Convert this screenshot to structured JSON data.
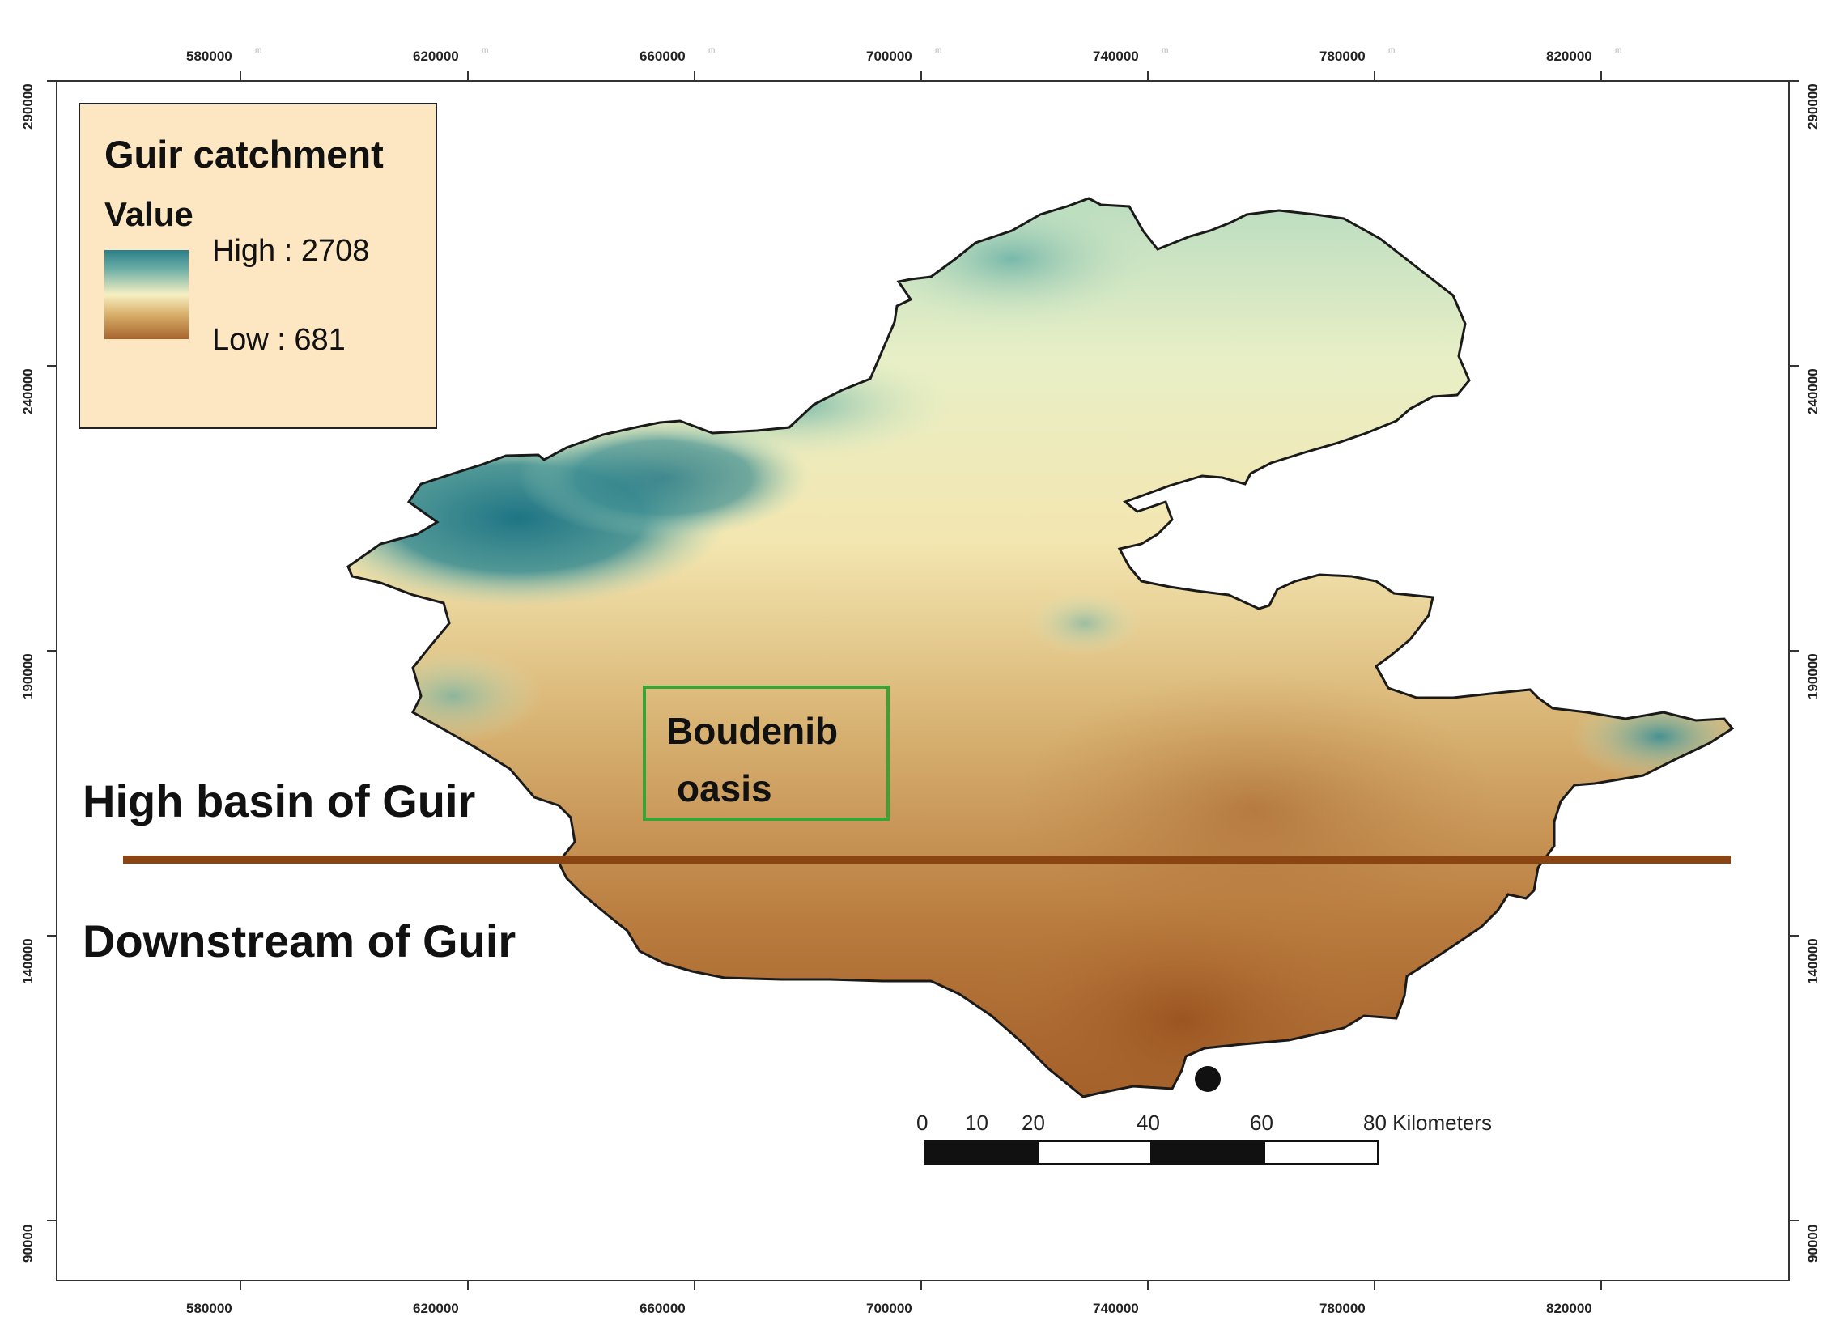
{
  "map": {
    "legend": {
      "title": "Guir catchment",
      "subtitle": "Value",
      "high_label": "High : 2708",
      "low_label": "Low : 681",
      "high_value": 2708,
      "low_value": 681,
      "colors": {
        "high": "#2a7f8a",
        "mid": "#f6f0c2",
        "low": "#a8642c"
      }
    },
    "x_ticks": [
      "580000",
      "620000",
      "660000",
      "700000",
      "740000",
      "780000",
      "820000"
    ],
    "y_ticks": [
      "290000",
      "240000",
      "190000",
      "140000",
      "90000"
    ],
    "tick_unit": "m",
    "zones": {
      "upper": "High basin of Guir",
      "lower": "Downstream of Guir"
    },
    "oasis": {
      "line1": "Boudenib",
      "line2": "oasis"
    },
    "divider_color": "#8b4513",
    "outlet_marker": "outlet-point",
    "scale_bar": {
      "labels": [
        "0",
        "10",
        "20",
        "40",
        "60",
        "80 Kilometers"
      ]
    }
  }
}
